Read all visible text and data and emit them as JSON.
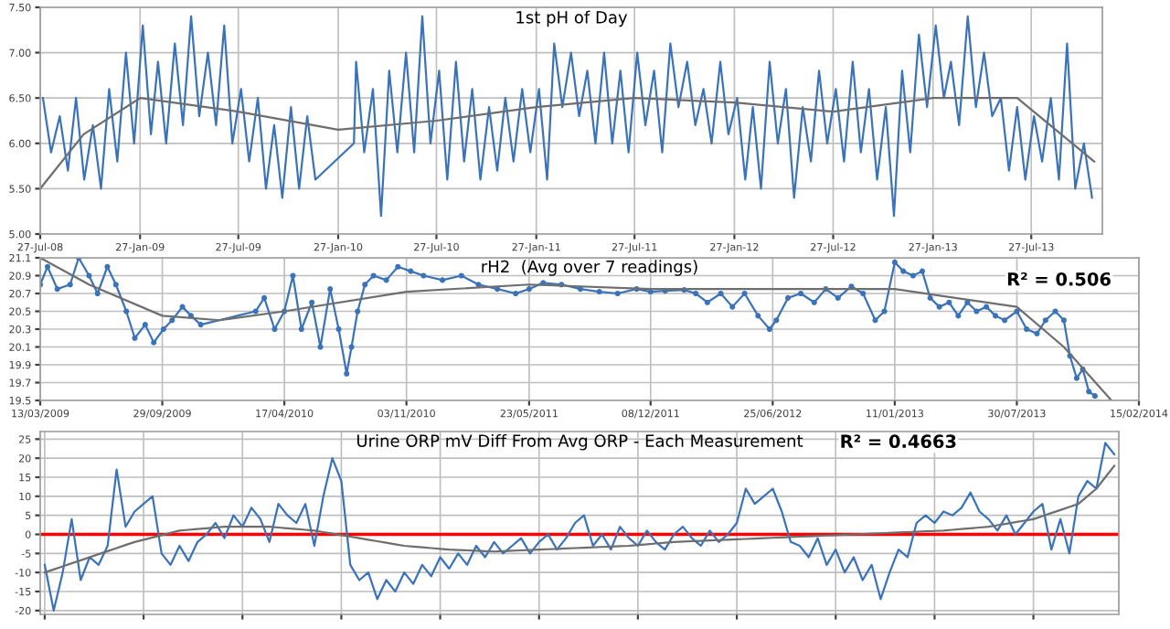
{
  "chart_data": [
    {
      "type": "line",
      "title": "1st pH of Day",
      "grid": true,
      "xlim": [
        "2008-07-27",
        "2013-12-05"
      ],
      "ylim": [
        5.0,
        7.5
      ],
      "yticks": [
        {
          "value": 5.0,
          "label": "5.00"
        },
        {
          "value": 5.5,
          "label": "5.50"
        },
        {
          "value": 6.0,
          "label": "6.00"
        },
        {
          "value": 6.5,
          "label": "6.50"
        },
        {
          "value": 7.0,
          "label": "7.00"
        },
        {
          "value": 7.5,
          "label": "7.50"
        }
      ],
      "xticks": [
        {
          "value": "2008-07-27",
          "label": "27-Jul-08"
        },
        {
          "value": "2009-01-27",
          "label": "27-Jan-09"
        },
        {
          "value": "2009-07-27",
          "label": "27-Jul-09"
        },
        {
          "value": "2010-01-27",
          "label": "27-Jan-10"
        },
        {
          "value": "2010-07-27",
          "label": "27-Jul-10"
        },
        {
          "value": "2011-01-27",
          "label": "27-Jan-11"
        },
        {
          "value": "2011-07-27",
          "label": "27-Jul-11"
        },
        {
          "value": "2012-01-27",
          "label": "27-Jan-12"
        },
        {
          "value": "2012-07-27",
          "label": "27-Jul-12"
        },
        {
          "value": "2013-01-27",
          "label": "27-Jan-13"
        },
        {
          "value": "2013-07-27",
          "label": "27-Jul-13"
        }
      ],
      "series": [
        {
          "color": "#3b73b9",
          "x": [
            "2008-08-01",
            "2008-08-16",
            "2008-09-01",
            "2008-09-16",
            "2008-10-01",
            "2008-10-16",
            "2008-11-01",
            "2008-11-16",
            "2008-12-01",
            "2008-12-16",
            "2009-01-01",
            "2009-01-16",
            "2009-02-01",
            "2009-02-16",
            "2009-03-01",
            "2009-03-16",
            "2009-04-01",
            "2009-04-16",
            "2009-05-01",
            "2009-05-16",
            "2009-06-01",
            "2009-06-16",
            "2009-07-01",
            "2009-07-16",
            "2009-08-01",
            "2009-08-16",
            "2009-09-01",
            "2009-09-16",
            "2009-10-01",
            "2009-10-16",
            "2009-11-01",
            "2009-11-16",
            "2009-12-01",
            "2009-12-16",
            "2010-02-25",
            "2010-03-01",
            "2010-03-16",
            "2010-04-01",
            "2010-04-16",
            "2010-05-01",
            "2010-05-16",
            "2010-06-01",
            "2010-06-16",
            "2010-07-01",
            "2010-07-16",
            "2010-08-01",
            "2010-08-16",
            "2010-09-01",
            "2010-09-16",
            "2010-10-01",
            "2010-10-16",
            "2010-11-01",
            "2010-11-16",
            "2010-12-01",
            "2010-12-16",
            "2011-01-01",
            "2011-01-16",
            "2011-02-01",
            "2011-02-16",
            "2011-03-01",
            "2011-03-16",
            "2011-04-01",
            "2011-04-16",
            "2011-05-01",
            "2011-05-16",
            "2011-06-01",
            "2011-06-16",
            "2011-07-01",
            "2011-07-16",
            "2011-08-01",
            "2011-08-16",
            "2011-09-01",
            "2011-09-16",
            "2011-10-01",
            "2011-10-16",
            "2011-11-01",
            "2011-11-16",
            "2011-12-01",
            "2011-12-16",
            "2012-01-01",
            "2012-01-16",
            "2012-02-01",
            "2012-02-16",
            "2012-03-01",
            "2012-03-16",
            "2012-04-01",
            "2012-04-16",
            "2012-05-01",
            "2012-05-16",
            "2012-06-01",
            "2012-06-16",
            "2012-07-01",
            "2012-07-16",
            "2012-08-01",
            "2012-08-16",
            "2012-09-01",
            "2012-09-16",
            "2012-10-01",
            "2012-10-16",
            "2012-11-01",
            "2012-11-16",
            "2012-12-01",
            "2012-12-16",
            "2013-01-01",
            "2013-01-16",
            "2013-02-01",
            "2013-02-16",
            "2013-03-01",
            "2013-03-16",
            "2013-04-01",
            "2013-04-16",
            "2013-05-01",
            "2013-05-16",
            "2013-06-01",
            "2013-06-16",
            "2013-07-01",
            "2013-07-16",
            "2013-08-01",
            "2013-08-16",
            "2013-09-01",
            "2013-09-16",
            "2013-10-01",
            "2013-10-16",
            "2013-11-01",
            "2013-11-16"
          ],
          "values": [
            6.5,
            5.9,
            6.3,
            5.7,
            6.5,
            5.6,
            6.2,
            5.5,
            6.6,
            5.8,
            7.0,
            6.0,
            7.3,
            6.1,
            6.9,
            6.0,
            7.1,
            6.2,
            7.4,
            6.3,
            7.0,
            6.2,
            7.3,
            6.0,
            6.6,
            5.8,
            6.5,
            5.5,
            6.2,
            5.4,
            6.4,
            5.5,
            6.3,
            5.6,
            6.0,
            6.9,
            5.9,
            6.6,
            5.2,
            6.8,
            5.9,
            7.0,
            5.9,
            7.4,
            6.0,
            6.8,
            5.6,
            6.9,
            5.8,
            6.6,
            5.6,
            6.4,
            5.7,
            6.5,
            5.8,
            6.6,
            5.9,
            6.6,
            5.6,
            7.1,
            6.4,
            7.0,
            6.3,
            6.8,
            6.0,
            7.0,
            6.0,
            6.8,
            5.9,
            7.0,
            6.2,
            6.8,
            5.9,
            7.1,
            6.4,
            6.9,
            6.2,
            6.6,
            6.0,
            6.9,
            6.1,
            6.5,
            5.6,
            6.4,
            5.5,
            6.9,
            6.0,
            6.6,
            5.4,
            6.4,
            5.8,
            6.8,
            6.0,
            6.6,
            5.8,
            6.9,
            5.9,
            6.6,
            5.6,
            6.4,
            5.2,
            6.8,
            5.9,
            7.2,
            6.4,
            7.3,
            6.5,
            6.9,
            6.2,
            7.4,
            6.4,
            7.0,
            6.3,
            6.5,
            5.7,
            6.4,
            5.6,
            6.3,
            5.8,
            6.5,
            5.6,
            7.1,
            5.5,
            6.0,
            5.4
          ]
        },
        {
          "color": "#6e6e6e",
          "x": [
            "2008-07-27",
            "2008-10-15",
            "2009-01-27",
            "2009-07-27",
            "2010-01-27",
            "2010-07-27",
            "2011-01-27",
            "2011-07-27",
            "2012-01-27",
            "2012-07-27",
            "2013-01-27",
            "2013-07-01",
            "2013-11-20"
          ],
          "values": [
            5.5,
            6.1,
            6.5,
            6.35,
            6.15,
            6.25,
            6.4,
            6.5,
            6.45,
            6.35,
            6.5,
            6.5,
            5.8
          ]
        }
      ]
    },
    {
      "type": "line",
      "title": "rH2  (Avg over 7 readings)",
      "grid": true,
      "annotations": [
        "R² = 0.506"
      ],
      "xlim": [
        "2009-03-13",
        "2014-02-15"
      ],
      "ylim": [
        19.5,
        21.1
      ],
      "yticks": [
        19.5,
        19.7,
        19.9,
        20.1,
        20.3,
        20.5,
        20.7,
        20.9,
        21.1
      ],
      "xticks": [
        {
          "value": "2009-03-13",
          "label": "13/03/2009"
        },
        {
          "value": "2009-09-29",
          "label": "29/09/2009"
        },
        {
          "value": "2010-04-17",
          "label": "17/04/2010"
        },
        {
          "value": "2010-11-03",
          "label": "03/11/2010"
        },
        {
          "value": "2011-05-23",
          "label": "23/05/2011"
        },
        {
          "value": "2011-12-08",
          "label": "08/12/2011"
        },
        {
          "value": "2012-06-25",
          "label": "25/06/2012"
        },
        {
          "value": "2013-01-11",
          "label": "11/01/2013"
        },
        {
          "value": "2013-07-30",
          "label": "30/07/2013"
        },
        {
          "value": "2014-02-15",
          "label": "15/02/2014"
        }
      ],
      "series": [
        {
          "color": "#3b73b9",
          "marker": "circle",
          "x": [
            "2009-03-13",
            "2009-03-25",
            "2009-04-10",
            "2009-05-01",
            "2009-05-15",
            "2009-06-01",
            "2009-06-15",
            "2009-07-01",
            "2009-07-15",
            "2009-08-01",
            "2009-08-15",
            "2009-09-01",
            "2009-09-15",
            "2009-10-01",
            "2009-10-15",
            "2009-11-01",
            "2009-11-15",
            "2009-12-01",
            "2010-03-01",
            "2010-03-15",
            "2010-04-01",
            "2010-04-17",
            "2010-05-01",
            "2010-05-15",
            "2010-06-01",
            "2010-06-15",
            "2010-07-01",
            "2010-07-15",
            "2010-07-28",
            "2010-08-05",
            "2010-08-15",
            "2010-08-27",
            "2010-09-10",
            "2010-10-01",
            "2010-10-20",
            "2010-11-10",
            "2010-12-01",
            "2011-01-01",
            "2011-02-01",
            "2011-03-01",
            "2011-04-01",
            "2011-05-01",
            "2011-05-23",
            "2011-06-15",
            "2011-07-15",
            "2011-08-15",
            "2011-09-15",
            "2011-10-15",
            "2011-11-15",
            "2011-12-08",
            "2012-01-01",
            "2012-02-01",
            "2012-02-20",
            "2012-03-10",
            "2012-04-01",
            "2012-04-20",
            "2012-05-10",
            "2012-06-01",
            "2012-06-20",
            "2012-07-01",
            "2012-07-20",
            "2012-08-10",
            "2012-09-01",
            "2012-09-20",
            "2012-10-10",
            "2012-11-01",
            "2012-11-20",
            "2012-12-10",
            "2012-12-25",
            "2013-01-11",
            "2013-01-25",
            "2013-02-10",
            "2013-02-25",
            "2013-03-10",
            "2013-03-25",
            "2013-04-10",
            "2013-04-25",
            "2013-05-10",
            "2013-05-25",
            "2013-06-10",
            "2013-06-25",
            "2013-07-10",
            "2013-07-30",
            "2013-08-15",
            "2013-09-01",
            "2013-09-15",
            "2013-10-01",
            "2013-10-15",
            "2013-10-25",
            "2013-11-05",
            "2013-11-15",
            "2013-11-25",
            "2013-12-05"
          ],
          "values": [
            20.8,
            21.0,
            20.75,
            20.8,
            21.1,
            20.9,
            20.7,
            21.0,
            20.8,
            20.5,
            20.2,
            20.35,
            20.15,
            20.3,
            20.4,
            20.55,
            20.45,
            20.35,
            20.5,
            20.65,
            20.3,
            20.5,
            20.9,
            20.3,
            20.6,
            20.1,
            20.75,
            20.3,
            19.8,
            20.1,
            20.5,
            20.8,
            20.9,
            20.85,
            21.0,
            20.95,
            20.9,
            20.85,
            20.9,
            20.8,
            20.75,
            20.7,
            20.75,
            20.82,
            20.8,
            20.75,
            20.72,
            20.7,
            20.75,
            20.72,
            20.73,
            20.74,
            20.7,
            20.6,
            20.7,
            20.55,
            20.7,
            20.45,
            20.3,
            20.4,
            20.65,
            20.7,
            20.6,
            20.75,
            20.65,
            20.78,
            20.7,
            20.4,
            20.5,
            21.05,
            20.95,
            20.9,
            20.95,
            20.65,
            20.55,
            20.6,
            20.45,
            20.6,
            20.5,
            20.55,
            20.45,
            20.4,
            20.5,
            20.3,
            20.25,
            20.4,
            20.5,
            20.4,
            20.0,
            19.75,
            19.85,
            19.6,
            19.55
          ]
        },
        {
          "color": "#6e6e6e",
          "x": [
            "2009-03-13",
            "2009-06-01",
            "2009-09-29",
            "2010-01-01",
            "2010-04-17",
            "2010-11-03",
            "2011-05-23",
            "2011-12-08",
            "2012-06-25",
            "2013-01-11",
            "2013-07-30",
            "2013-10-15",
            "2014-01-01"
          ],
          "values": [
            21.1,
            20.8,
            20.45,
            20.4,
            20.5,
            20.72,
            20.8,
            20.75,
            20.75,
            20.75,
            20.55,
            20.1,
            19.5
          ]
        }
      ]
    },
    {
      "type": "line",
      "title": "Urine ORP mV Diff From Avg ORP - Each Measurement",
      "grid": true,
      "annotations": [
        "R² = 0.4663"
      ],
      "ylim": [
        -21,
        27
      ],
      "yticks": [
        -20,
        -15,
        -10,
        -5,
        0,
        5,
        10,
        15,
        20,
        25
      ],
      "ref_lines": [
        {
          "axis": "y",
          "value": 0,
          "color": "#ff0000"
        }
      ],
      "categories": [
        null,
        null,
        null,
        null,
        null,
        null,
        null,
        null,
        null,
        null,
        null,
        null,
        null,
        null,
        null,
        null,
        null,
        null,
        null,
        null,
        null,
        null,
        null,
        null,
        null,
        null,
        null,
        null,
        null,
        null,
        null,
        null,
        null,
        null,
        null,
        null,
        null,
        null,
        null,
        null,
        null,
        null,
        null,
        null,
        null,
        null,
        null,
        null,
        null,
        null,
        null,
        null,
        null,
        null,
        null,
        null,
        null,
        null,
        null,
        null,
        null,
        null,
        null,
        null,
        null,
        null,
        null,
        null,
        null,
        null,
        null,
        null,
        null,
        null,
        null,
        null,
        null,
        null,
        null,
        null,
        null,
        null,
        null,
        null,
        null,
        null,
        null,
        null,
        null,
        null,
        null,
        null,
        null,
        null,
        null,
        null,
        null,
        null,
        null,
        null,
        null,
        null,
        null,
        null,
        null,
        null,
        null,
        null,
        null,
        null,
        null,
        null,
        null,
        null,
        null,
        null,
        null,
        null,
        null,
        null
      ],
      "series": [
        {
          "color": "#3b73b9",
          "values": [
            -8,
            -20,
            -10,
            4,
            -12,
            -6,
            -8,
            -3,
            17,
            2,
            6,
            8,
            10,
            -5,
            -8,
            -3,
            -7,
            -2,
            0,
            3,
            -1,
            5,
            2,
            7,
            4,
            -2,
            8,
            5,
            3,
            8,
            -3,
            10,
            20,
            14,
            -8,
            -12,
            -10,
            -17,
            -12,
            -15,
            -10,
            -13,
            -8,
            -11,
            -6,
            -9,
            -5,
            -8,
            -3,
            -6,
            -2,
            -5,
            -3,
            -1,
            -5,
            -2,
            0,
            -4,
            -1,
            3,
            5,
            -3,
            0,
            -4,
            2,
            -1,
            -3,
            1,
            -2,
            -4,
            0,
            2,
            -1,
            -3,
            1,
            -2,
            0,
            3,
            12,
            8,
            10,
            12,
            6,
            -2,
            -3,
            -6,
            -1,
            -8,
            -4,
            -10,
            -6,
            -12,
            -8,
            -17,
            -10,
            -4,
            -6,
            3,
            5,
            3,
            6,
            5,
            7,
            11,
            6,
            4,
            1,
            5,
            0,
            3,
            6,
            8,
            -4,
            4,
            -5,
            10,
            14,
            12,
            24,
            21
          ]
        },
        {
          "color": "#6e6e6e",
          "values": [
            -10,
            -9.2,
            -8.4,
            -7.6,
            -6.8,
            -6,
            -5.2,
            -4.4,
            -3.6,
            -2.8,
            -2,
            -1.4,
            -0.8,
            -0.2,
            0.4,
            1,
            1.2,
            1.4,
            1.6,
            1.8,
            2,
            2,
            2,
            2,
            2,
            2,
            1.8,
            1.6,
            1.4,
            1.2,
            1,
            0.6,
            0.2,
            -0.2,
            -0.6,
            -1,
            -1.4,
            -1.8,
            -2.2,
            -2.6,
            -3,
            -3.2,
            -3.4,
            -3.6,
            -3.8,
            -4,
            -4.1,
            -4.2,
            -4.3,
            -4.4,
            -4.5,
            -4.4,
            -4.3,
            -4.2,
            -4.1,
            -4,
            -3.9,
            -3.8,
            -3.7,
            -3.6,
            -3.5,
            -3.4,
            -3.3,
            -3.2,
            -3.1,
            -3,
            -2.8,
            -2.6,
            -2.4,
            -2.2,
            -2,
            -1.9,
            -1.8,
            -1.7,
            -1.6,
            -1.5,
            -1.4,
            -1.3,
            -1.2,
            -1.1,
            -1,
            -0.9,
            -0.8,
            -0.7,
            -0.6,
            -0.5,
            -0.4,
            -0.3,
            -0.2,
            -0.1,
            0,
            0.1,
            0.2,
            0.3,
            0.4,
            0.5,
            0.6,
            0.7,
            0.8,
            0.9,
            1,
            1.2,
            1.4,
            1.6,
            1.8,
            2,
            2.4,
            2.8,
            3.2,
            3.6,
            4,
            4.8,
            5.6,
            6.4,
            7.2,
            8,
            10,
            12,
            15,
            18
          ]
        }
      ]
    }
  ]
}
